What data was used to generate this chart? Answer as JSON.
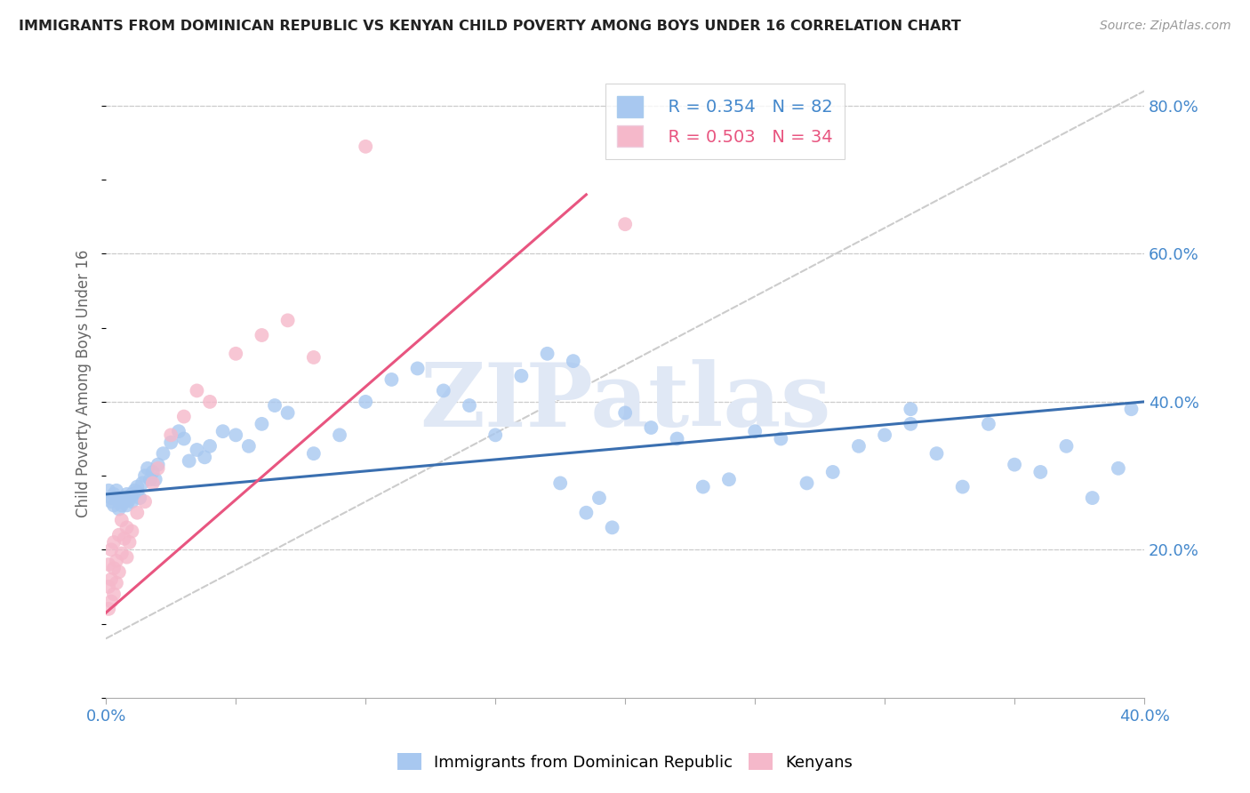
{
  "title": "IMMIGRANTS FROM DOMINICAN REPUBLIC VS KENYAN CHILD POVERTY AMONG BOYS UNDER 16 CORRELATION CHART",
  "source": "Source: ZipAtlas.com",
  "ylabel": "Child Poverty Among Boys Under 16",
  "xlim": [
    0.0,
    0.4
  ],
  "ylim": [
    0.0,
    0.85
  ],
  "yticks_right": [
    0.2,
    0.4,
    0.6,
    0.8
  ],
  "ytick_labels_right": [
    "20.0%",
    "40.0%",
    "60.0%",
    "80.0%"
  ],
  "blue_R": 0.354,
  "blue_N": 82,
  "pink_R": 0.503,
  "pink_N": 34,
  "blue_color": "#A8C8F0",
  "pink_color": "#F5B8CA",
  "blue_line_color": "#3A6FB0",
  "pink_line_color": "#E85580",
  "ref_line_color": "#CCCCCC",
  "watermark": "ZIPatlas",
  "watermark_color": "#DDDDDD",
  "background_color": "#FFFFFF",
  "grid_color": "#CCCCCC",
  "blue_scatter_x": [
    0.001,
    0.002,
    0.002,
    0.003,
    0.003,
    0.004,
    0.004,
    0.005,
    0.005,
    0.005,
    0.006,
    0.006,
    0.007,
    0.007,
    0.008,
    0.008,
    0.009,
    0.009,
    0.01,
    0.01,
    0.011,
    0.012,
    0.012,
    0.013,
    0.014,
    0.015,
    0.016,
    0.017,
    0.018,
    0.019,
    0.02,
    0.022,
    0.025,
    0.028,
    0.03,
    0.032,
    0.035,
    0.038,
    0.04,
    0.045,
    0.05,
    0.055,
    0.06,
    0.065,
    0.07,
    0.08,
    0.09,
    0.1,
    0.11,
    0.12,
    0.13,
    0.14,
    0.15,
    0.16,
    0.17,
    0.18,
    0.19,
    0.2,
    0.21,
    0.22,
    0.23,
    0.24,
    0.25,
    0.26,
    0.27,
    0.28,
    0.29,
    0.3,
    0.31,
    0.32,
    0.33,
    0.34,
    0.35,
    0.36,
    0.37,
    0.38,
    0.39,
    0.395,
    0.175,
    0.185,
    0.195,
    0.31
  ],
  "blue_scatter_y": [
    0.28,
    0.27,
    0.265,
    0.275,
    0.26,
    0.28,
    0.27,
    0.265,
    0.27,
    0.255,
    0.265,
    0.26,
    0.27,
    0.265,
    0.275,
    0.26,
    0.268,
    0.272,
    0.275,
    0.265,
    0.28,
    0.278,
    0.285,
    0.27,
    0.29,
    0.3,
    0.31,
    0.295,
    0.305,
    0.295,
    0.315,
    0.33,
    0.345,
    0.36,
    0.35,
    0.32,
    0.335,
    0.325,
    0.34,
    0.36,
    0.355,
    0.34,
    0.37,
    0.395,
    0.385,
    0.33,
    0.355,
    0.4,
    0.43,
    0.445,
    0.415,
    0.395,
    0.355,
    0.435,
    0.465,
    0.455,
    0.27,
    0.385,
    0.365,
    0.35,
    0.285,
    0.295,
    0.36,
    0.35,
    0.29,
    0.305,
    0.34,
    0.355,
    0.37,
    0.33,
    0.285,
    0.37,
    0.315,
    0.305,
    0.34,
    0.27,
    0.31,
    0.39,
    0.29,
    0.25,
    0.23,
    0.39
  ],
  "pink_scatter_x": [
    0.001,
    0.001,
    0.001,
    0.002,
    0.002,
    0.002,
    0.003,
    0.003,
    0.003,
    0.004,
    0.004,
    0.005,
    0.005,
    0.006,
    0.006,
    0.007,
    0.008,
    0.008,
    0.009,
    0.01,
    0.012,
    0.015,
    0.018,
    0.02,
    0.025,
    0.03,
    0.035,
    0.04,
    0.05,
    0.06,
    0.07,
    0.08,
    0.1,
    0.2
  ],
  "pink_scatter_y": [
    0.12,
    0.15,
    0.18,
    0.13,
    0.16,
    0.2,
    0.14,
    0.175,
    0.21,
    0.155,
    0.185,
    0.17,
    0.22,
    0.195,
    0.24,
    0.215,
    0.23,
    0.19,
    0.21,
    0.225,
    0.25,
    0.265,
    0.29,
    0.31,
    0.355,
    0.38,
    0.415,
    0.4,
    0.465,
    0.49,
    0.51,
    0.46,
    0.745,
    0.64
  ],
  "blue_trend_x": [
    0.0,
    0.4
  ],
  "blue_trend_y": [
    0.275,
    0.4
  ],
  "pink_trend_x": [
    0.0,
    0.185
  ],
  "pink_trend_y": [
    0.115,
    0.68
  ],
  "ref_trend_x": [
    0.0,
    0.4
  ],
  "ref_trend_y": [
    0.08,
    0.82
  ]
}
